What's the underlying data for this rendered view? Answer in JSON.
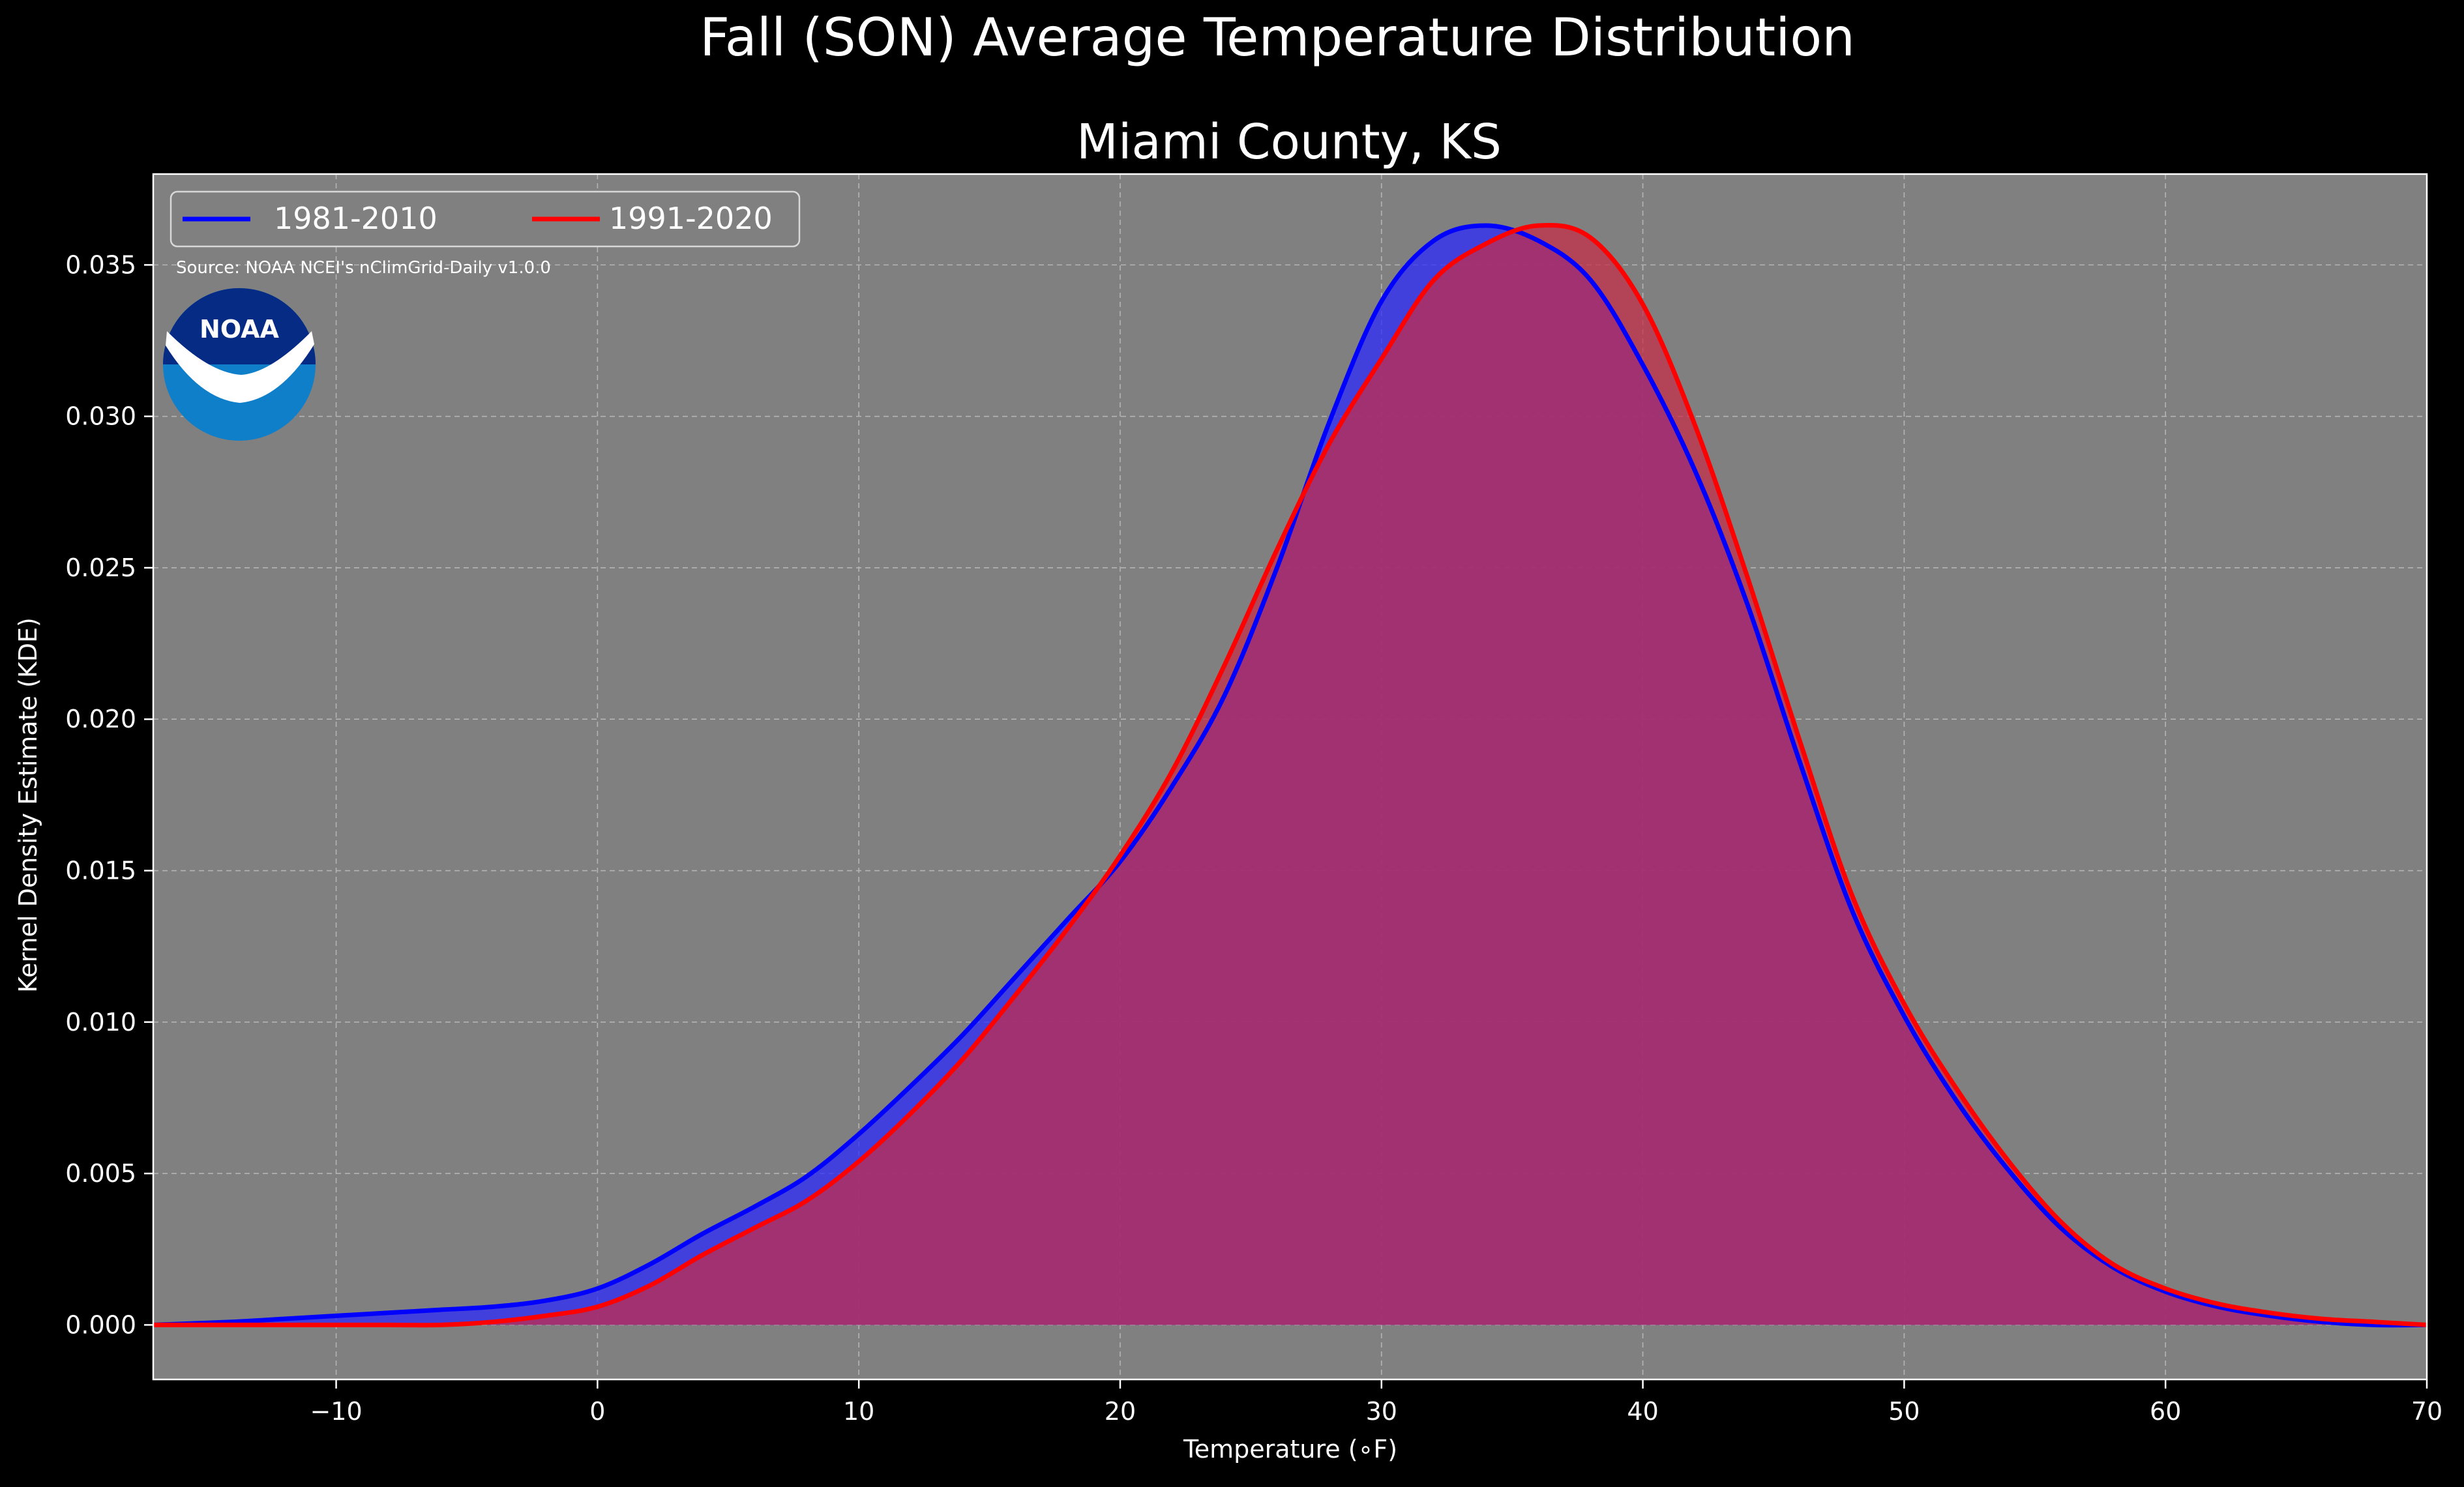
{
  "chart_data": {
    "type": "area",
    "title": "Fall (SON) Average Temperature Distribution",
    "subtitle": "Miami County, KS",
    "xlabel": "Temperature (∘F)",
    "ylabel": "Kernel Density Estimate (KDE)",
    "xlim": [
      -17,
      70
    ],
    "ylim": [
      -0.0018,
      0.038
    ],
    "x_ticks": [
      -10,
      0,
      10,
      20,
      30,
      40,
      50,
      60,
      70
    ],
    "x_tick_labels": [
      "−10",
      "0",
      "10",
      "20",
      "30",
      "40",
      "50",
      "60",
      "70"
    ],
    "y_ticks": [
      0.0,
      0.005,
      0.01,
      0.015,
      0.02,
      0.025,
      0.03,
      0.035
    ],
    "y_tick_labels": [
      "0.000",
      "0.005",
      "0.010",
      "0.015",
      "0.020",
      "0.025",
      "0.030",
      "0.035"
    ],
    "grid": true,
    "legend_position": "top-left",
    "annotation": "Source: NOAA NCEI's nClimGrid-Daily v1.0.0",
    "logo_text": "NOAA",
    "series": [
      {
        "name": "1981-2010",
        "color": "#0000ff",
        "fill_color": "#2a27ff",
        "x": [
          -17,
          -14,
          -12,
          -10,
          -8,
          -6,
          -4,
          -2,
          0,
          2,
          4,
          6,
          8,
          10,
          12,
          14,
          16,
          18,
          20,
          22,
          24,
          26,
          28,
          30,
          32,
          34,
          36,
          38,
          40,
          42,
          44,
          46,
          48,
          50,
          52,
          54,
          56,
          58,
          60,
          62,
          64,
          66,
          68,
          70
        ],
        "y": [
          0.0,
          0.0001,
          0.0002,
          0.0003,
          0.0004,
          0.0005,
          0.0006,
          0.0008,
          0.0012,
          0.002,
          0.003,
          0.0039,
          0.0049,
          0.0063,
          0.0079,
          0.0096,
          0.0115,
          0.0134,
          0.0153,
          0.0178,
          0.0208,
          0.025,
          0.0298,
          0.0338,
          0.0358,
          0.0363,
          0.0358,
          0.0345,
          0.0317,
          0.0282,
          0.0238,
          0.0186,
          0.0137,
          0.0102,
          0.0074,
          0.0051,
          0.0032,
          0.0019,
          0.0011,
          0.0006,
          0.0003,
          0.0001,
          0.0,
          0.0
        ]
      },
      {
        "name": "1991-2020",
        "color": "#ff0000",
        "fill_color": "#c62b46",
        "x": [
          -17,
          -14,
          -12,
          -10,
          -8,
          -6,
          -4,
          -2,
          0,
          2,
          4,
          6,
          8,
          10,
          12,
          14,
          16,
          18,
          20,
          22,
          24,
          26,
          28,
          30,
          32,
          34,
          36,
          38,
          40,
          42,
          44,
          46,
          48,
          50,
          52,
          54,
          56,
          58,
          60,
          62,
          64,
          66,
          68,
          70
        ],
        "y": [
          0.0,
          0.0,
          0.0,
          0.0,
          0.0,
          0.0,
          0.0001,
          0.0003,
          0.0006,
          0.0013,
          0.0023,
          0.0032,
          0.0041,
          0.0054,
          0.007,
          0.0088,
          0.0109,
          0.0131,
          0.0155,
          0.0183,
          0.0218,
          0.0256,
          0.0291,
          0.0319,
          0.0345,
          0.0357,
          0.0363,
          0.0359,
          0.0337,
          0.0297,
          0.0247,
          0.0193,
          0.0142,
          0.0106,
          0.0078,
          0.0054,
          0.0034,
          0.002,
          0.0012,
          0.0007,
          0.0004,
          0.0002,
          0.0001,
          0.0
        ]
      }
    ]
  }
}
